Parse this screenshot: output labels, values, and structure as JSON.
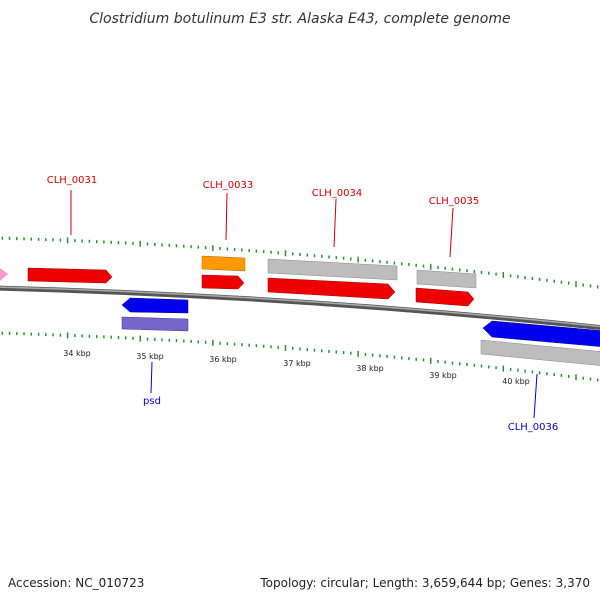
{
  "title": "Clostridium botulinum E3 str. Alaska E43, complete genome",
  "footer": {
    "accession": "Accession: NC_010723",
    "summary": "Topology: circular; Length: 3,659,644 bp; Genes: 3,370"
  },
  "colors": {
    "backbone": "#7a7a7a",
    "tick": "#2f8f2f",
    "label_red": "#cc0000",
    "label_blue": "#0000cc",
    "red": "#ee0000",
    "blue": "#0000ee",
    "orange": "#ff9900",
    "gray": "#bdbdbd",
    "purple": "#7766cc",
    "pink": "#ff99cc"
  },
  "scale_labels": [
    "34 kbp",
    "35 kbp",
    "36 kbp",
    "37 kbp",
    "38 kbp",
    "39 kbp",
    "40 kbp"
  ],
  "genes": [
    {
      "label": "CLH_0031",
      "color": "red"
    },
    {
      "label": "CLH_0033",
      "color": "red"
    },
    {
      "label": "CLH_0034",
      "color": "red"
    },
    {
      "label": "CLH_0035",
      "color": "red"
    },
    {
      "label": "psd",
      "color": "blue"
    },
    {
      "label": "CLH_0036",
      "color": "blue"
    }
  ]
}
